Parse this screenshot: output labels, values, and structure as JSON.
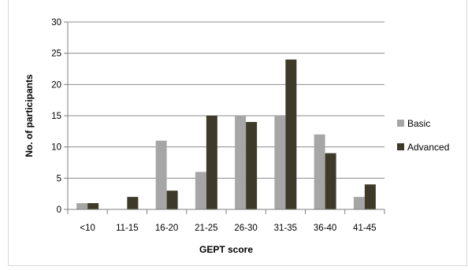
{
  "chart_data": {
    "type": "bar",
    "title": "",
    "xlabel": "GEPT score",
    "ylabel": "No. of participants",
    "categories": [
      "<10",
      "11-15",
      "16-20",
      "21-25",
      "26-30",
      "31-35",
      "36-40",
      "41-45"
    ],
    "series": [
      {
        "name": "Basic",
        "values": [
          1,
          0,
          11,
          6,
          15,
          15,
          12,
          2
        ],
        "color": "#a6a6a6"
      },
      {
        "name": "Advanced",
        "values": [
          1,
          2,
          3,
          15,
          14,
          24,
          9,
          4
        ],
        "color": "#3d3a2a"
      }
    ],
    "ylim": [
      0,
      30
    ],
    "yticks": [
      0,
      5,
      10,
      15,
      20,
      25,
      30
    ],
    "grid": true,
    "legend_position": "right"
  }
}
